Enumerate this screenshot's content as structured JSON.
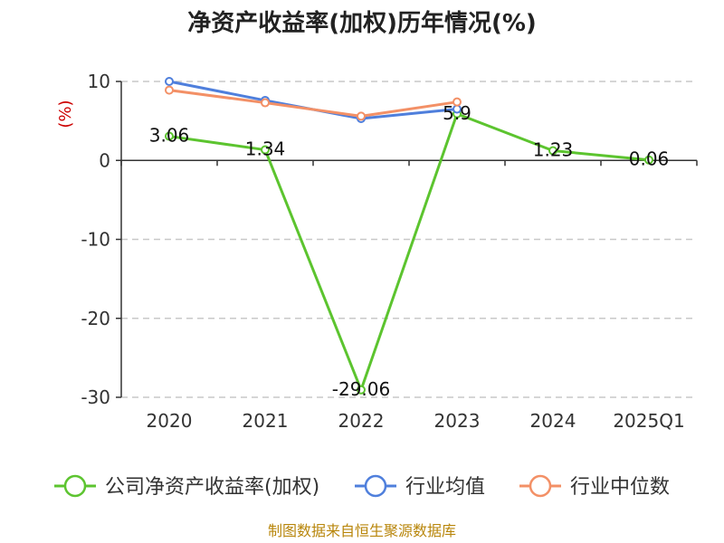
{
  "chart_data": {
    "type": "line",
    "title": "净资产收益率(加权)历年情况(%)",
    "ylabel": "(%)",
    "xlabel": "",
    "categories": [
      "2020",
      "2021",
      "2022",
      "2023",
      "2024",
      "2025Q1"
    ],
    "ylim": [
      -30,
      10
    ],
    "yticks": [
      10,
      0,
      -10,
      -20,
      -30
    ],
    "grid": true,
    "legend_position": "bottom",
    "series": [
      {
        "name": "公司净资产收益率(加权)",
        "color": "#5cc42f",
        "values": [
          3.06,
          1.34,
          -29.06,
          5.9,
          1.23,
          0.06
        ],
        "labels": [
          "3.06",
          "1.34",
          "-29.06",
          "5.9",
          "1.23",
          "0.06"
        ]
      },
      {
        "name": "行业均值",
        "color": "#4f7fdc",
        "values": [
          10.0,
          7.6,
          5.3,
          6.5,
          null,
          null
        ]
      },
      {
        "name": "行业中位数",
        "color": "#f39066",
        "values": [
          8.9,
          7.3,
          5.6,
          7.4,
          null,
          null
        ]
      }
    ]
  },
  "source_text": "制图数据来自恒生聚源数据库"
}
